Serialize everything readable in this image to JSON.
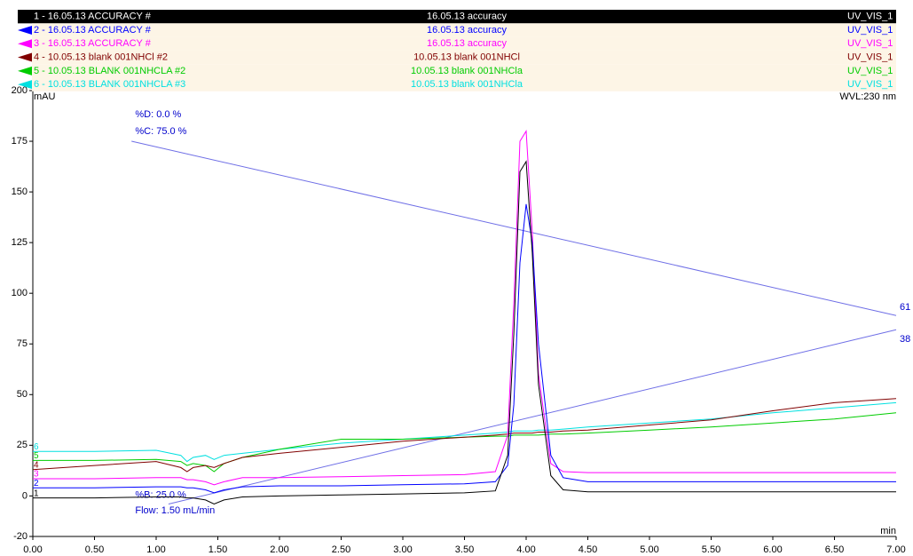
{
  "chart_data": {
    "type": "line",
    "x": [
      0,
      0.5,
      1.0,
      1.2,
      1.25,
      1.3,
      1.4,
      1.47,
      1.55,
      1.7,
      2.0,
      2.5,
      3.0,
      3.5,
      3.75,
      3.85,
      3.9,
      3.95,
      4.0,
      4.05,
      4.1,
      4.2,
      4.3,
      4.5,
      5.0,
      5.5,
      6.0,
      6.5,
      7.0
    ],
    "series": [
      {
        "name": "1 - 16.05.13 ACCURACY #",
        "sample": "16.05.13 accuracy",
        "channel": "UV_VIS_1",
        "trace_label": "1",
        "color": "#000000",
        "values": [
          -1,
          -1,
          -0.5,
          -0.5,
          -1,
          -1,
          -2,
          -4,
          -2,
          -0.5,
          0,
          0.5,
          1,
          1.5,
          2.5,
          20,
          80,
          160,
          165,
          120,
          55,
          10,
          3,
          2,
          2,
          2,
          2,
          2,
          2
        ]
      },
      {
        "name": "2 - 16.05.13 ACCURACY #",
        "sample": "16.05.13 accuracy",
        "channel": "UV_VIS_1",
        "trace_label": "2",
        "color": "#0000ff",
        "values": [
          4,
          4,
          4.5,
          4.5,
          4,
          4,
          3,
          1.5,
          3,
          4.5,
          5,
          5,
          5.5,
          6,
          7,
          15,
          45,
          115,
          144,
          125,
          75,
          20,
          9,
          7,
          7,
          7,
          7,
          7,
          7
        ]
      },
      {
        "name": "3 - 16.05.13 ACCURACY #",
        "sample": "16.05.13 accuracy",
        "channel": "UV_VIS_1",
        "trace_label": "3",
        "color": "#ff00ff",
        "values": [
          8.5,
          8.5,
          9,
          9,
          8,
          8,
          7,
          5.5,
          7,
          9,
          9,
          9.5,
          10,
          10.5,
          12,
          30,
          95,
          175,
          180,
          130,
          60,
          16,
          12,
          11.5,
          11.5,
          11.5,
          11.5,
          11.5,
          11.5
        ]
      },
      {
        "name": "4 - 10.05.13 blank 001NHCl #2",
        "sample": "10.05.13 blank 001NHCl",
        "channel": "UV_VIS_1",
        "trace_label": "4",
        "color": "#800000",
        "values": [
          13,
          15,
          17,
          14,
          12,
          14,
          15,
          14,
          16,
          19,
          21,
          24,
          27,
          29,
          30,
          30.5,
          31,
          31,
          31,
          31,
          31.5,
          31.5,
          32,
          32.5,
          35,
          37.5,
          42,
          46,
          48
        ]
      },
      {
        "name": "5 - 10.05.13 BLANK 001NHCLA #2",
        "sample": "10.05.13 blank 001NHCla",
        "channel": "UV_VIS_1",
        "trace_label": "5",
        "color": "#00cc00",
        "values": [
          17.5,
          17.5,
          18,
          17,
          15,
          16,
          15,
          12,
          16,
          19,
          23,
          28,
          28,
          29,
          29.5,
          29.5,
          30,
          30,
          30,
          30,
          30,
          30.5,
          30.5,
          31,
          32.5,
          34,
          36,
          38,
          41
        ]
      },
      {
        "name": "6 - 10.05.13 BLANK 001NHCLA #3",
        "sample": "10.05.13 blank 001NHCla",
        "channel": "UV_VIS_1",
        "trace_label": "6",
        "color": "#00e0e0",
        "values": [
          22,
          22,
          22.5,
          20,
          17,
          19,
          20,
          18,
          20,
          21,
          23,
          26,
          28,
          30,
          31,
          31.5,
          32,
          32,
          32,
          32,
          32.5,
          32.5,
          33,
          34,
          36,
          38,
          41,
          43.5,
          46
        ]
      }
    ],
    "gradient": [
      {
        "label": "%C: 75.0 %",
        "x": [
          0.8,
          7.0
        ],
        "values": [
          175,
          89
        ],
        "end_label": "61",
        "color": "#6f6fe6"
      },
      {
        "label": "%B: 25.0 %",
        "x": [
          1.1,
          7.0
        ],
        "values": [
          -4,
          82
        ],
        "end_label": "38",
        "color": "#6f6fe6"
      }
    ],
    "annotations": [
      "%D: 0.0 %",
      "Flow: 1.50 mL/min"
    ],
    "y_unit": "mAU",
    "x_unit": "min",
    "wavelength": "WVL:230 nm",
    "xlim": [
      0,
      7
    ],
    "ylim": [
      -20,
      200
    ],
    "xticks": [
      {
        "value": 0,
        "label": "0.00"
      },
      {
        "value": 0.5,
        "label": "0.50"
      },
      {
        "value": 1,
        "label": "1.00"
      },
      {
        "value": 1.5,
        "label": "1.50"
      },
      {
        "value": 2,
        "label": "2.00"
      },
      {
        "value": 2.5,
        "label": "2.50"
      },
      {
        "value": 3,
        "label": "3.00"
      },
      {
        "value": 3.5,
        "label": "3.50"
      },
      {
        "value": 4,
        "label": "4.00"
      },
      {
        "value": 4.5,
        "label": "4.50"
      },
      {
        "value": 5,
        "label": "5.00"
      },
      {
        "value": 5.5,
        "label": "5.50"
      },
      {
        "value": 6,
        "label": "6.00"
      },
      {
        "value": 6.5,
        "label": "6.50"
      },
      {
        "value": 7,
        "label": "7.00"
      }
    ],
    "yticks": [
      -20,
      0,
      25,
      50,
      75,
      100,
      125,
      150,
      175,
      200
    ]
  }
}
